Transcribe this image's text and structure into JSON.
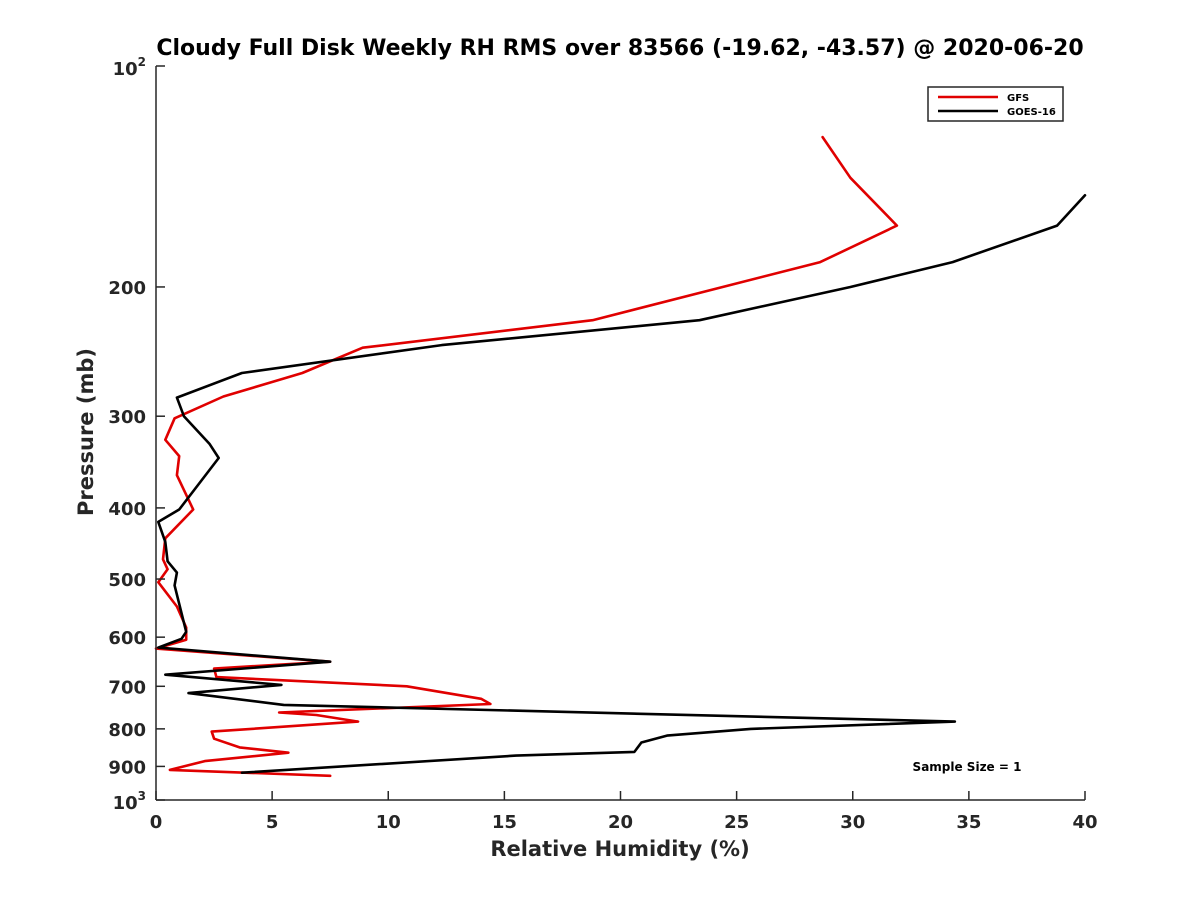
{
  "chart_data": {
    "type": "line",
    "title": "Cloudy Full Disk Weekly RH RMS over 83566 (-19.62, -43.57) @ 2020-06-20",
    "xlabel": "Relative Humidity (%)",
    "ylabel": "Pressure (mb)",
    "xlim": [
      0,
      40
    ],
    "ylim": [
      100,
      1000
    ],
    "y_scale": "log",
    "y_reversed": true,
    "x_ticks": [
      0,
      5,
      10,
      15,
      20,
      25,
      30,
      35,
      40
    ],
    "x_tick_labels": [
      "0",
      "5",
      "10",
      "15",
      "20",
      "25",
      "30",
      "35",
      "40"
    ],
    "y_ticks": [
      200,
      300,
      400,
      500,
      600,
      700,
      800,
      900
    ],
    "y_tick_labels": [
      "200",
      "300",
      "400",
      "500",
      "600",
      "700",
      "800",
      "900"
    ],
    "y_end_labels": {
      "top_base": "10",
      "top_exp": "2",
      "bottom_base": "10",
      "bottom_exp": "3"
    },
    "legend_position": "top-right",
    "grid": false,
    "annotation": "Sample Size = 1",
    "series": [
      {
        "name": "GFS",
        "color": "#e00000",
        "points": [
          [
            28.7,
            125
          ],
          [
            29.9,
            142
          ],
          [
            31.9,
            165
          ],
          [
            28.6,
            185
          ],
          [
            18.8,
            222
          ],
          [
            8.9,
            242
          ],
          [
            6.3,
            262
          ],
          [
            2.9,
            282
          ],
          [
            0.8,
            302
          ],
          [
            0.4,
            323
          ],
          [
            1.0,
            340
          ],
          [
            0.9,
            361
          ],
          [
            1.6,
            402
          ],
          [
            0.4,
            440
          ],
          [
            0.3,
            470
          ],
          [
            0.5,
            485
          ],
          [
            0.1,
            505
          ],
          [
            0.9,
            545
          ],
          [
            1.3,
            582
          ],
          [
            1.3,
            605
          ],
          [
            0.0,
            622
          ],
          [
            7.5,
            648
          ],
          [
            2.5,
            662
          ],
          [
            2.6,
            680
          ],
          [
            10.8,
            700
          ],
          [
            14.0,
            728
          ],
          [
            14.4,
            740
          ],
          [
            5.3,
            760
          ],
          [
            6.9,
            766
          ],
          [
            8.7,
            782
          ],
          [
            2.4,
            807
          ],
          [
            2.5,
            825
          ],
          [
            3.6,
            848
          ],
          [
            5.7,
            862
          ],
          [
            2.1,
            885
          ],
          [
            0.6,
            910
          ],
          [
            7.5,
            927
          ]
        ]
      },
      {
        "name": "GOES-16",
        "color": "#000000",
        "points": [
          [
            40.0,
            150
          ],
          [
            38.8,
            165
          ],
          [
            34.3,
            185
          ],
          [
            29.9,
            200
          ],
          [
            23.4,
            222
          ],
          [
            12.3,
            240
          ],
          [
            3.7,
            262
          ],
          [
            0.9,
            283
          ],
          [
            1.2,
            300
          ],
          [
            2.3,
            327
          ],
          [
            2.7,
            342
          ],
          [
            1.0,
            402
          ],
          [
            0.1,
            418
          ],
          [
            0.4,
            445
          ],
          [
            0.5,
            473
          ],
          [
            0.9,
            490
          ],
          [
            0.8,
            510
          ],
          [
            1.3,
            590
          ],
          [
            1.1,
            603
          ],
          [
            0.1,
            620
          ],
          [
            7.5,
            648
          ],
          [
            0.4,
            675
          ],
          [
            5.4,
            697
          ],
          [
            1.4,
            715
          ],
          [
            5.5,
            742
          ],
          [
            34.4,
            782
          ],
          [
            25.6,
            800
          ],
          [
            22.0,
            817
          ],
          [
            20.9,
            835
          ],
          [
            20.6,
            860
          ],
          [
            15.5,
            870
          ],
          [
            3.7,
            918
          ]
        ]
      }
    ]
  }
}
